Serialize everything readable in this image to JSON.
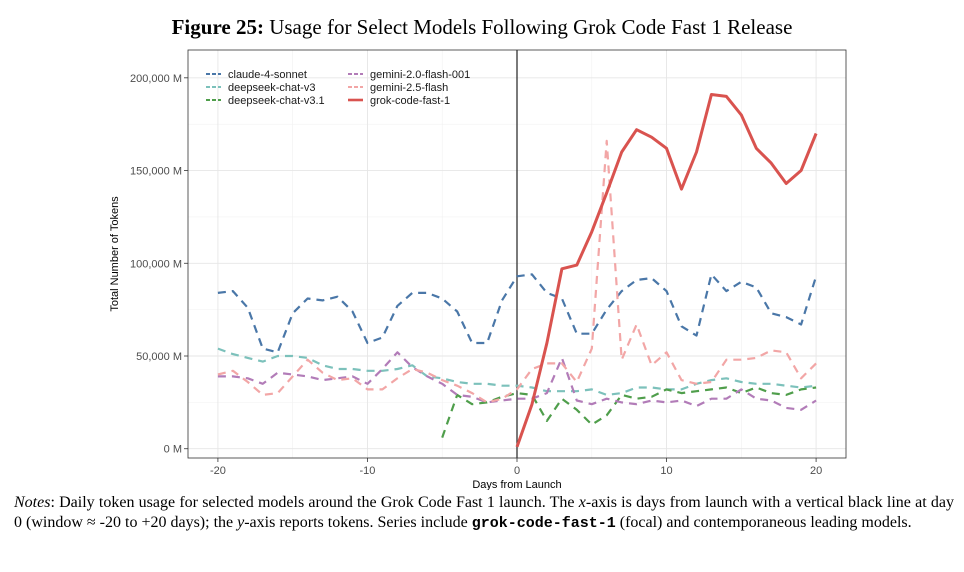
{
  "figure": {
    "label": "Figure 25:",
    "title": "Usage for Select Models Following Grok Code Fast 1 Release"
  },
  "notes": {
    "label": "Notes",
    "part1": ": Daily token usage for selected models around the Grok Code Fast 1 launch. The ",
    "x_var": "x",
    "part2": "-axis is days from launch with a vertical black line at day 0 (window ≈ -20 to +20 days); the ",
    "y_var": "y",
    "part3": "-axis reports tokens. Series include ",
    "focal_code": "grok-code-fast-1",
    "part4": " (focal) and contemporaneous leading models."
  },
  "chart_data": {
    "type": "line",
    "title": "Usage for Select Models Following Grok Code Fast 1 Release",
    "xlabel": "Days from Launch",
    "ylabel": "Total Number of Tokens",
    "xlim": [
      -22,
      22
    ],
    "ylim": [
      -5000,
      215000
    ],
    "xticks": [
      -20,
      -10,
      0,
      10,
      20
    ],
    "xtick_labels": [
      "-20",
      "-10",
      "0",
      "10",
      "20"
    ],
    "yticks": [
      0,
      50000,
      100000,
      150000,
      200000
    ],
    "ytick_labels": [
      "0 M",
      "50,000 M",
      "100,000 M",
      "150,000 M",
      "200,000 M"
    ],
    "vline": 0,
    "grid": true,
    "legend_position": "top-left",
    "series": [
      {
        "name": "claude-4-sonnet",
        "color": "#4a77a8",
        "dash": "dashed",
        "x": [
          -20,
          -19,
          -18,
          -17,
          -16,
          -15,
          -14,
          -13,
          -12,
          -11,
          -10,
          -9,
          -8,
          -7,
          -6,
          -5,
          -4,
          -3,
          -2,
          -1,
          0,
          1,
          2,
          3,
          4,
          5,
          6,
          7,
          8,
          9,
          10,
          11,
          12,
          13,
          14,
          15,
          16,
          17,
          18,
          19,
          20
        ],
        "y": [
          84000,
          85000,
          76000,
          54000,
          52000,
          73000,
          81000,
          80000,
          82000,
          74000,
          57000,
          60000,
          77000,
          84000,
          84000,
          81000,
          74000,
          57000,
          57000,
          80000,
          93000,
          94000,
          84000,
          81000,
          62000,
          62000,
          75000,
          85000,
          91000,
          92000,
          85000,
          66000,
          61000,
          94000,
          85000,
          90000,
          87000,
          73000,
          71000,
          67000,
          93000
        ]
      },
      {
        "name": "deepseek-chat-v3",
        "color": "#7cc1bb",
        "dash": "dashed",
        "x": [
          -20,
          -19,
          -18,
          -17,
          -16,
          -15,
          -14,
          -13,
          -12,
          -11,
          -10,
          -9,
          -8,
          -7,
          -6,
          -5,
          -4,
          -3,
          -2,
          -1,
          0,
          1,
          2,
          3,
          4,
          5,
          6,
          7,
          8,
          9,
          10,
          11,
          12,
          13,
          14,
          15,
          16,
          17,
          18,
          19,
          20
        ],
        "y": [
          54000,
          51000,
          49000,
          47000,
          50000,
          50000,
          49000,
          45000,
          43000,
          43000,
          42000,
          42000,
          43000,
          45000,
          39000,
          38000,
          36000,
          35000,
          35000,
          34000,
          34000,
          33000,
          31000,
          31000,
          31000,
          32000,
          29000,
          30000,
          33000,
          33000,
          32000,
          32000,
          35000,
          37000,
          38000,
          36000,
          35000,
          35000,
          34000,
          33000,
          34000
        ]
      },
      {
        "name": "deepseek-chat-v3.1",
        "color": "#4f9e4b",
        "dash": "dashed",
        "x": [
          -5,
          -4,
          -3,
          -2,
          -1,
          0,
          1,
          2,
          3,
          4,
          5,
          6,
          7,
          8,
          9,
          10,
          11,
          12,
          13,
          14,
          15,
          16,
          17,
          18,
          19,
          20
        ],
        "y": [
          6000,
          29000,
          24000,
          25000,
          28000,
          30000,
          29000,
          15000,
          27000,
          21000,
          13000,
          18000,
          29000,
          27000,
          28000,
          32000,
          30000,
          31000,
          32000,
          33000,
          30000,
          33000,
          30000,
          29000,
          32000,
          33000
        ]
      },
      {
        "name": "gemini-2.0-flash-001",
        "color": "#b27cb8",
        "dash": "dashed",
        "x": [
          -20,
          -19,
          -18,
          -17,
          -16,
          -15,
          -14,
          -13,
          -12,
          -11,
          -10,
          -9,
          -8,
          -7,
          -6,
          -5,
          -4,
          -3,
          -2,
          -1,
          0,
          1,
          2,
          3,
          4,
          5,
          6,
          7,
          8,
          9,
          10,
          11,
          12,
          13,
          14,
          15,
          16,
          17,
          18,
          19,
          20
        ],
        "y": [
          39000,
          39000,
          38000,
          35000,
          41000,
          40000,
          39000,
          37000,
          38000,
          39000,
          35000,
          43000,
          52000,
          44000,
          39000,
          35000,
          29000,
          28000,
          25000,
          26000,
          27000,
          27000,
          30000,
          49000,
          26000,
          24000,
          27000,
          25000,
          24000,
          26000,
          25000,
          26000,
          23000,
          27000,
          27000,
          32000,
          27000,
          26000,
          22000,
          21000,
          26000
        ]
      },
      {
        "name": "gemini-2.5-flash",
        "color": "#f2a6a6",
        "dash": "dashed",
        "x": [
          -20,
          -19,
          -18,
          -17,
          -16,
          -15,
          -14,
          -13,
          -12,
          -11,
          -10,
          -9,
          -8,
          -7,
          -6,
          -5,
          -4,
          -3,
          -2,
          -1,
          0,
          1,
          2,
          3,
          4,
          5,
          6,
          7,
          8,
          9,
          10,
          11,
          12,
          13,
          14,
          15,
          16,
          17,
          18,
          19,
          20
        ],
        "y": [
          40000,
          42000,
          36000,
          29000,
          30000,
          39000,
          48000,
          41000,
          37000,
          38000,
          32000,
          32000,
          38000,
          43000,
          41000,
          37000,
          34000,
          30000,
          25000,
          27000,
          32000,
          43000,
          46000,
          46000,
          36000,
          54000,
          166000,
          48000,
          67000,
          45000,
          52000,
          37000,
          35000,
          36000,
          48000,
          48000,
          49000,
          53000,
          52000,
          38000,
          46000
        ]
      },
      {
        "name": "grok-code-fast-1",
        "color": "#d9534f",
        "dash": "solid",
        "x": [
          0,
          1,
          2,
          3,
          4,
          5,
          6,
          7,
          8,
          9,
          10,
          11,
          12,
          13,
          14,
          15,
          16,
          17,
          18,
          19,
          20
        ],
        "y": [
          1000,
          24000,
          57000,
          97000,
          99000,
          117000,
          138000,
          160000,
          172000,
          168000,
          162000,
          140000,
          160000,
          191000,
          190000,
          180000,
          162000,
          154000,
          143000,
          150000,
          170000
        ]
      }
    ]
  }
}
